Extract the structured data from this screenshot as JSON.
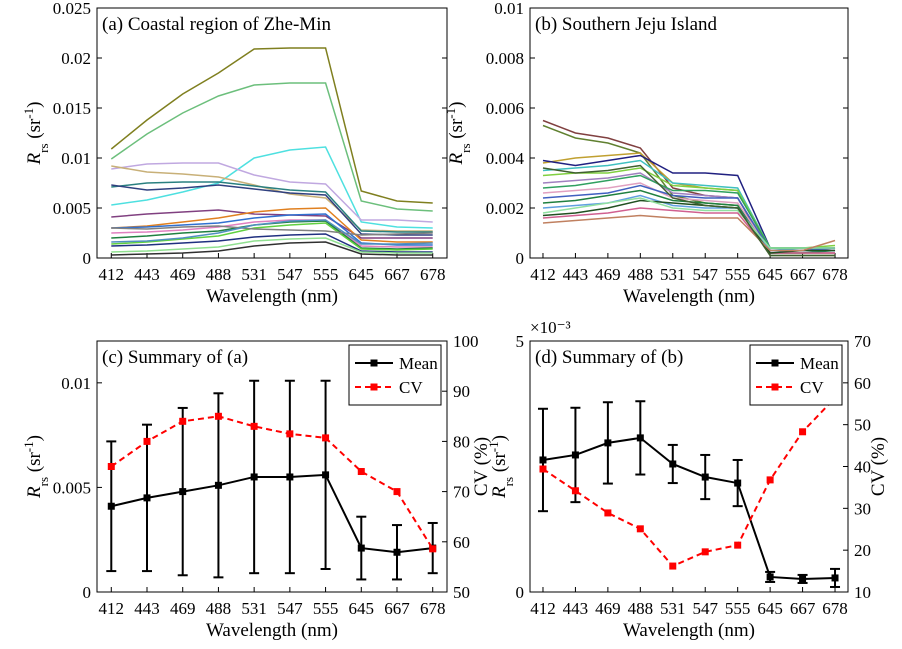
{
  "chart_data": [
    {
      "type": "line",
      "title": "(a) Coastal region of Zhe-Min",
      "xlabel": "Wavelength (nm)",
      "ylabel": [
        "R",
        "rs",
        " (sr",
        "-1",
        ")"
      ],
      "categories": [
        "412",
        "443",
        "469",
        "488",
        "531",
        "547",
        "555",
        "645",
        "667",
        "678"
      ],
      "ylim": [
        0,
        0.025
      ],
      "yticks": [
        0,
        0.005,
        0.01,
        0.015,
        0.02,
        0.025
      ],
      "series": [
        {
          "color": "#7f7f1f",
          "values": [
            0.0109,
            0.0138,
            0.0164,
            0.0185,
            0.0209,
            0.021,
            0.021,
            0.0067,
            0.0057,
            0.0055
          ]
        },
        {
          "color": "#6cbf7c",
          "values": [
            0.0099,
            0.0124,
            0.0145,
            0.0162,
            0.0173,
            0.0175,
            0.0175,
            0.0057,
            0.0049,
            0.0047
          ]
        },
        {
          "color": "#4ee0e0",
          "values": [
            0.0053,
            0.0058,
            0.0066,
            0.0075,
            0.01,
            0.0108,
            0.0111,
            0.0036,
            0.0031,
            0.003
          ]
        },
        {
          "color": "#c0a8e0",
          "values": [
            0.0089,
            0.0094,
            0.0095,
            0.0095,
            0.0083,
            0.0076,
            0.0074,
            0.0038,
            0.0038,
            0.0036
          ]
        },
        {
          "color": "#c8b078",
          "values": [
            0.0092,
            0.0086,
            0.0084,
            0.0081,
            0.0073,
            0.0064,
            0.006,
            0.0028,
            0.0027,
            0.0027
          ]
        },
        {
          "color": "#2a8080",
          "values": [
            0.0071,
            0.0075,
            0.0076,
            0.0076,
            0.0072,
            0.0068,
            0.0066,
            0.0027,
            0.0026,
            0.0026
          ]
        },
        {
          "color": "#30407f",
          "values": [
            0.0073,
            0.0068,
            0.007,
            0.0073,
            0.0069,
            0.0065,
            0.0063,
            0.0024,
            0.0023,
            0.0023
          ]
        },
        {
          "color": "#804080",
          "values": [
            0.0041,
            0.0044,
            0.0046,
            0.0048,
            0.0044,
            0.0043,
            0.0042,
            0.002,
            0.002,
            0.002
          ]
        },
        {
          "color": "#e08020",
          "values": [
            0.003,
            0.0032,
            0.0036,
            0.004,
            0.0046,
            0.0049,
            0.005,
            0.0018,
            0.0016,
            0.0016
          ]
        },
        {
          "color": "#3070d0",
          "values": [
            0.003,
            0.0031,
            0.0033,
            0.0035,
            0.004,
            0.0043,
            0.0044,
            0.0015,
            0.0013,
            0.0013
          ]
        },
        {
          "color": "#e080c0",
          "values": [
            0.0025,
            0.0026,
            0.0028,
            0.0031,
            0.0036,
            0.0038,
            0.0038,
            0.0012,
            0.0011,
            0.0011
          ]
        },
        {
          "color": "#208040",
          "values": [
            0.002,
            0.0022,
            0.0025,
            0.0027,
            0.0033,
            0.0036,
            0.0037,
            0.001,
            0.0009,
            0.001
          ]
        },
        {
          "color": "#60d040",
          "values": [
            0.0014,
            0.0016,
            0.0019,
            0.0022,
            0.003,
            0.0033,
            0.0035,
            0.0009,
            0.0008,
            0.0009
          ]
        },
        {
          "color": "#808080",
          "values": [
            0.003,
            0.0029,
            0.0031,
            0.0032,
            0.0029,
            0.0028,
            0.0027,
            0.0023,
            0.0024,
            0.0025
          ]
        },
        {
          "color": "#203080",
          "values": [
            0.0012,
            0.0013,
            0.0015,
            0.0017,
            0.0021,
            0.0023,
            0.0024,
            0.0007,
            0.0006,
            0.0006
          ]
        },
        {
          "color": "#303030",
          "values": [
            0.0003,
            0.0004,
            0.0005,
            0.0007,
            0.0012,
            0.0015,
            0.0016,
            0.0004,
            0.0003,
            0.0003
          ]
        },
        {
          "color": "#90e090",
          "values": [
            0.0006,
            0.0007,
            0.0009,
            0.0011,
            0.0017,
            0.0019,
            0.002,
            0.0006,
            0.0005,
            0.0005
          ]
        },
        {
          "color": "#5090c0",
          "values": [
            0.0016,
            0.0017,
            0.002,
            0.0025,
            0.0033,
            0.0037,
            0.0038,
            0.0014,
            0.0014,
            0.0015
          ]
        }
      ]
    },
    {
      "type": "line",
      "title": "(b)  Southern Jeju Island",
      "xlabel": "Wavelength (nm)",
      "ylabel": [
        "R",
        "rs",
        " (sr",
        "-1",
        ")"
      ],
      "categories": [
        "412",
        "443",
        "469",
        "488",
        "531",
        "547",
        "555",
        "645",
        "667",
        "678"
      ],
      "ylim": [
        0,
        0.01
      ],
      "yticks": [
        0,
        0.002,
        0.004,
        0.006,
        0.008,
        0.01
      ],
      "series": [
        {
          "color": "#804040",
          "values": [
            0.0055,
            0.005,
            0.0048,
            0.0044,
            0.0028,
            0.0025,
            0.0024,
            0.0002,
            0.0002,
            0.0002
          ]
        },
        {
          "color": "#608030",
          "values": [
            0.0053,
            0.0048,
            0.0046,
            0.0042,
            0.0025,
            0.0022,
            0.0021,
            0.0001,
            0.0001,
            0.0001
          ]
        },
        {
          "color": "#c0a030",
          "values": [
            0.0038,
            0.004,
            0.0041,
            0.0042,
            0.003,
            0.0028,
            0.0027,
            0.0003,
            0.0003,
            0.0004
          ]
        },
        {
          "color": "#202080",
          "values": [
            0.0039,
            0.0037,
            0.0039,
            0.0041,
            0.0034,
            0.0034,
            0.0033,
            0.0004,
            0.0004,
            0.0004
          ]
        },
        {
          "color": "#40c0c0",
          "values": [
            0.0035,
            0.0036,
            0.0037,
            0.0039,
            0.003,
            0.0029,
            0.0028,
            0.0004,
            0.0003,
            0.0003
          ]
        },
        {
          "color": "#80d040",
          "values": [
            0.0033,
            0.0034,
            0.0034,
            0.0036,
            0.0029,
            0.0028,
            0.0027,
            0.0004,
            0.0004,
            0.0005
          ]
        },
        {
          "color": "#a080c0",
          "values": [
            0.003,
            0.0031,
            0.0032,
            0.0034,
            0.0026,
            0.0025,
            0.0024,
            0.0003,
            0.0003,
            0.0003
          ]
        },
        {
          "color": "#30a060",
          "values": [
            0.0028,
            0.0029,
            0.0031,
            0.0033,
            0.0027,
            0.0027,
            0.0026,
            0.0004,
            0.0004,
            0.0004
          ]
        },
        {
          "color": "#e0a0c0",
          "values": [
            0.0026,
            0.0027,
            0.0028,
            0.003,
            0.0024,
            0.0023,
            0.0022,
            0.0003,
            0.0003,
            0.0003
          ]
        },
        {
          "color": "#4060c0",
          "values": [
            0.0024,
            0.0025,
            0.0026,
            0.0029,
            0.0025,
            0.0024,
            0.0024,
            0.0003,
            0.0003,
            0.0004
          ]
        },
        {
          "color": "#208040",
          "values": [
            0.0022,
            0.0023,
            0.0025,
            0.0027,
            0.0023,
            0.0022,
            0.0021,
            0.0002,
            0.0002,
            0.0003
          ]
        },
        {
          "color": "#60a0e0",
          "values": [
            0.002,
            0.0021,
            0.0022,
            0.0025,
            0.0021,
            0.002,
            0.002,
            0.0003,
            0.0003,
            0.0003
          ]
        },
        {
          "color": "#d06090",
          "values": [
            0.0016,
            0.0017,
            0.0018,
            0.002,
            0.0019,
            0.0018,
            0.0018,
            0.0002,
            0.0002,
            0.0002
          ]
        },
        {
          "color": "#205020",
          "values": [
            0.0017,
            0.0018,
            0.002,
            0.0023,
            0.0022,
            0.0021,
            0.002,
            0.0002,
            0.0003,
            0.0003
          ]
        },
        {
          "color": "#90e0a0",
          "values": [
            0.0018,
            0.002,
            0.0022,
            0.0024,
            0.002,
            0.0019,
            0.0019,
            0.0004,
            0.0004,
            0.0004
          ]
        },
        {
          "color": "#c08060",
          "values": [
            0.0014,
            0.0015,
            0.0016,
            0.0017,
            0.0016,
            0.0016,
            0.0016,
            0.0003,
            0.0003,
            0.0007
          ]
        },
        {
          "color": "#406030",
          "values": [
            0.0036,
            0.0034,
            0.0035,
            0.0037,
            0.0024,
            0.0021,
            0.002,
            0.0001,
            0.0001,
            0.0001
          ]
        }
      ]
    },
    {
      "type": "line",
      "title": "(c) Summary of (a)",
      "xlabel": "Wavelength (nm)",
      "ylabel": [
        "R",
        "rs",
        " (sr",
        "-1",
        ")"
      ],
      "y2label": "CV (%)",
      "categories": [
        "412",
        "443",
        "469",
        "488",
        "531",
        "547",
        "555",
        "645",
        "667",
        "678"
      ],
      "ylim": [
        0,
        0.012
      ],
      "yticks": [
        0,
        0.005,
        0.01
      ],
      "y2lim": [
        50,
        100
      ],
      "y2ticks": [
        50,
        60,
        70,
        80,
        90,
        100
      ],
      "legend": "upper right",
      "series": [
        {
          "name": "Mean",
          "color": "#000000",
          "linestyle": "solid",
          "marker": "square",
          "values": [
            0.0041,
            0.0045,
            0.0048,
            0.0051,
            0.0055,
            0.0055,
            0.0056,
            0.0021,
            0.0019,
            0.0021
          ],
          "errors": [
            0.0031,
            0.0035,
            0.004,
            0.0044,
            0.0046,
            0.0046,
            0.0045,
            0.0015,
            0.0013,
            0.0012
          ]
        },
        {
          "name": "CV",
          "color": "#ff0000",
          "linestyle": "dashed",
          "marker": "square",
          "axis": "y2",
          "values": [
            75,
            80,
            84,
            85,
            83,
            81.5,
            80.7,
            74,
            70,
            58.6
          ]
        }
      ]
    },
    {
      "type": "line",
      "title": "(d) Summary of (b)",
      "xlabel": "Wavelength (nm)",
      "ylabel": [
        "R",
        "rs",
        " (sr",
        "-1",
        ")"
      ],
      "y2label": "CV (%)",
      "y_multiplier": "×10⁻³",
      "categories": [
        "412",
        "443",
        "469",
        "488",
        "531",
        "547",
        "555",
        "645",
        "667",
        "678"
      ],
      "ylim": [
        0,
        0.005
      ],
      "yticks": [
        0,
        {
          "value": 0.005,
          "label": "5"
        }
      ],
      "y2lim": [
        10,
        70
      ],
      "y2ticks": [
        10,
        20,
        30,
        40,
        50,
        60,
        70
      ],
      "legend": "upper right",
      "series": [
        {
          "name": "Mean",
          "color": "#000000",
          "linestyle": "solid",
          "marker": "square",
          "values": [
            0.00263,
            0.00273,
            0.00297,
            0.00307,
            0.00255,
            0.00229,
            0.00217,
            0.0003,
            0.00026,
            0.00028
          ],
          "errors": [
            0.00102,
            0.00094,
            0.00081,
            0.00073,
            0.00038,
            0.00044,
            0.00046,
            0.0001,
            8e-05,
            0.00018
          ]
        },
        {
          "name": "CV",
          "color": "#ff0000",
          "linestyle": "dashed",
          "marker": "square",
          "axis": "y2",
          "values": [
            39.4,
            34.2,
            28.9,
            25.1,
            16.2,
            19.6,
            21.2,
            36.8,
            48.3,
            56.4
          ]
        }
      ]
    }
  ]
}
